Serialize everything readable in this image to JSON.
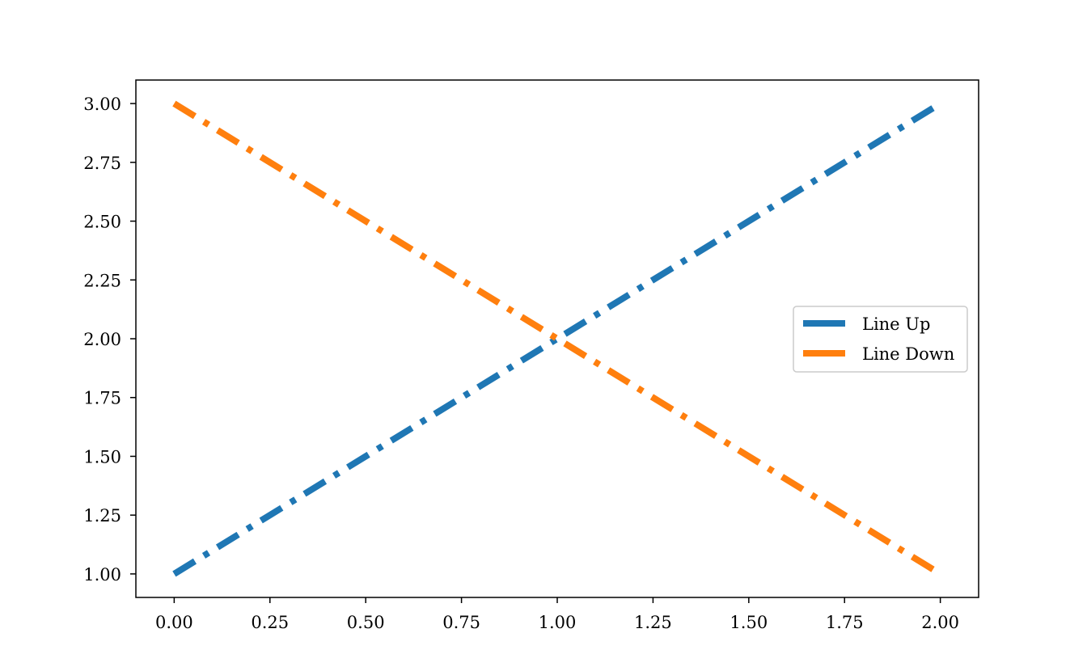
{
  "chart_data": {
    "type": "line",
    "title": "",
    "xlabel": "",
    "ylabel": "",
    "xlim": [
      -0.1,
      2.1
    ],
    "ylim": [
      0.9,
      3.1
    ],
    "x_ticks": [
      0,
      0.25,
      0.5,
      0.75,
      1.0,
      1.25,
      1.5,
      1.75,
      2.0
    ],
    "x_tick_labels": [
      "0.00",
      "0.25",
      "0.50",
      "0.75",
      "1.00",
      "1.25",
      "1.50",
      "1.75",
      "2.00"
    ],
    "y_ticks": [
      1.0,
      1.25,
      1.5,
      1.75,
      2.0,
      2.25,
      2.5,
      2.75,
      3.0
    ],
    "y_tick_labels": [
      "1.00",
      "1.25",
      "1.50",
      "1.75",
      "2.00",
      "2.25",
      "2.50",
      "2.75",
      "3.00"
    ],
    "grid": false,
    "legend_position": "center-right",
    "line_style": "dash-dot",
    "series": [
      {
        "name": "Line Up",
        "color": "#1f77b4",
        "x": [
          0,
          2
        ],
        "y": [
          1,
          3
        ]
      },
      {
        "name": "Line Down",
        "color": "#ff7f0e",
        "x": [
          0,
          2
        ],
        "y": [
          3,
          1
        ]
      }
    ]
  }
}
